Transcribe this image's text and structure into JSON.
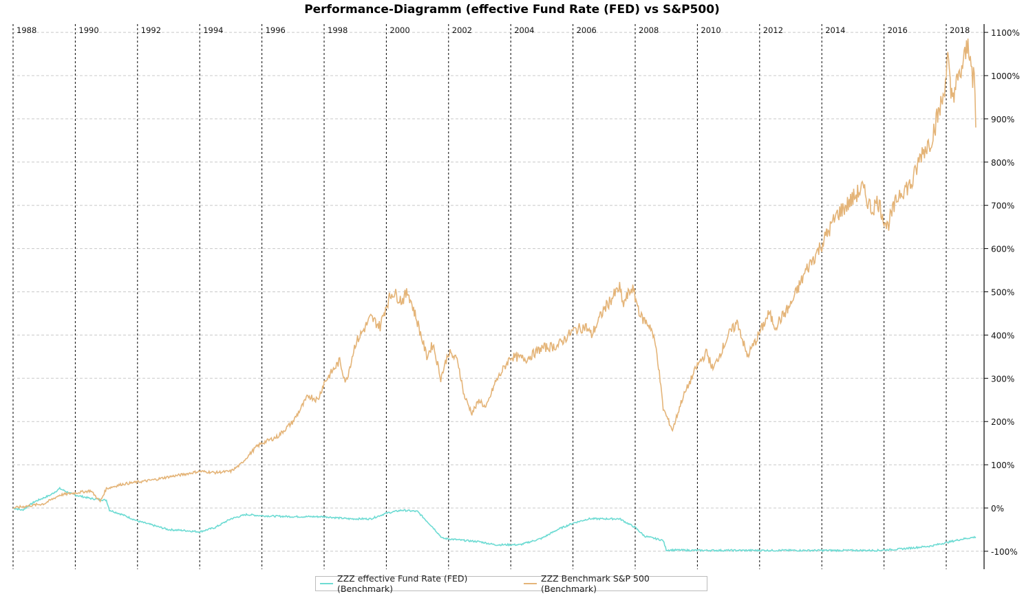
{
  "chart_data": {
    "type": "line",
    "title": "Performance-Diagramm (effective Fund Rate (FED)  vs  S&P500)",
    "xlabel": "",
    "ylabel": "",
    "x_ticks": [
      "1988",
      "1990",
      "1992",
      "1994",
      "1996",
      "1998",
      "2000",
      "2002",
      "2004",
      "2006",
      "2008",
      "2010",
      "2012",
      "2014",
      "2016",
      "2018"
    ],
    "y_ticks": [
      "1100%",
      "1000%",
      "900%",
      "800%",
      "700%",
      "600%",
      "500%",
      "400%",
      "300%",
      "200%",
      "100%",
      "0%",
      "-100%"
    ],
    "ylim": [
      -100,
      1100
    ],
    "xlim": [
      1988,
      2019
    ],
    "grid": true,
    "legend_position": "bottom",
    "series": [
      {
        "name": "ZZZ effective Fund Rate (FED) (Benchmark)",
        "color": "#6ddbd3",
        "x": [
          1988,
          1988.3,
          1988.7,
          1989.2,
          1989.5,
          1989.8,
          1990,
          1990.5,
          1991,
          1991.1,
          1991.5,
          1992,
          1992.5,
          1993,
          1993.5,
          1994,
          1994.5,
          1995,
          1995.5,
          1996,
          1997,
          1998,
          1998.8,
          1999.5,
          2000,
          2000.5,
          2001,
          2001.5,
          2001.8,
          2002.5,
          2003,
          2003.5,
          2004.3,
          2005,
          2005.5,
          2006,
          2006.5,
          2007.5,
          2008,
          2008.3,
          2008.9,
          2009,
          2010,
          2015.8,
          2016.5,
          2017.5,
          2018,
          2018.5,
          2018.95
        ],
        "y": [
          0,
          -5,
          15,
          30,
          45,
          35,
          30,
          22,
          18,
          -5,
          -15,
          -30,
          -40,
          -50,
          -52,
          -55,
          -45,
          -25,
          -15,
          -18,
          -20,
          -20,
          -25,
          -25,
          -12,
          -5,
          -8,
          -45,
          -70,
          -75,
          -78,
          -85,
          -85,
          -70,
          -50,
          -35,
          -25,
          -25,
          -45,
          -65,
          -75,
          -97,
          -98,
          -98,
          -95,
          -88,
          -80,
          -72,
          -67
        ]
      },
      {
        "name": "ZZZ Benchmark S&P 500 (Benchmark)",
        "color": "#e4b478",
        "x": [
          1988,
          1988.5,
          1989,
          1989.5,
          1990,
          1990.5,
          1990.8,
          1991,
          1991.5,
          1992,
          1992.5,
          1993,
          1993.5,
          1994,
          1994.5,
          1995,
          1995.3,
          1995.8,
          1996,
          1996.5,
          1997,
          1997.5,
          1997.8,
          1998,
          1998.5,
          1998.7,
          1999,
          1999.5,
          1999.8,
          2000,
          2000.2,
          2000.5,
          2000.7,
          2001,
          2001.3,
          2001.5,
          2001.75,
          2002,
          2002.3,
          2002.5,
          2002.75,
          2003,
          2003.2,
          2003.5,
          2004,
          2004.5,
          2005,
          2005.5,
          2006,
          2006.4,
          2006.6,
          2007,
          2007.5,
          2007.6,
          2007.9,
          2008.2,
          2008.5,
          2008.7,
          2008.9,
          2009.2,
          2009.5,
          2010,
          2010.3,
          2010.5,
          2011,
          2011.3,
          2011.6,
          2011.9,
          2012.3,
          2012.5,
          2013,
          2013.5,
          2014,
          2014.5,
          2014.8,
          2015.3,
          2015.6,
          2015.8,
          2016.1,
          2016.5,
          2016.9,
          2017.2,
          2017.5,
          2017.9,
          2018.05,
          2018.15,
          2018.4,
          2018.7,
          2018.8,
          2018.85,
          2018.9,
          2018.95
        ],
        "y": [
          0,
          5,
          10,
          30,
          35,
          40,
          15,
          45,
          55,
          60,
          65,
          72,
          78,
          85,
          82,
          85,
          100,
          140,
          150,
          165,
          200,
          260,
          250,
          290,
          340,
          290,
          380,
          440,
          420,
          470,
          500,
          480,
          500,
          430,
          350,
          380,
          300,
          360,
          340,
          260,
          220,
          250,
          230,
          290,
          350,
          345,
          370,
          375,
          410,
          420,
          400,
          460,
          510,
          470,
          510,
          440,
          420,
          360,
          230,
          180,
          250,
          330,
          360,
          320,
          400,
          430,
          350,
          390,
          450,
          420,
          470,
          550,
          610,
          680,
          700,
          740,
          690,
          710,
          650,
          730,
          750,
          820,
          850,
          950,
          1040,
          950,
          990,
          1070,
          1050,
          970,
          1010,
          880
        ]
      }
    ]
  }
}
